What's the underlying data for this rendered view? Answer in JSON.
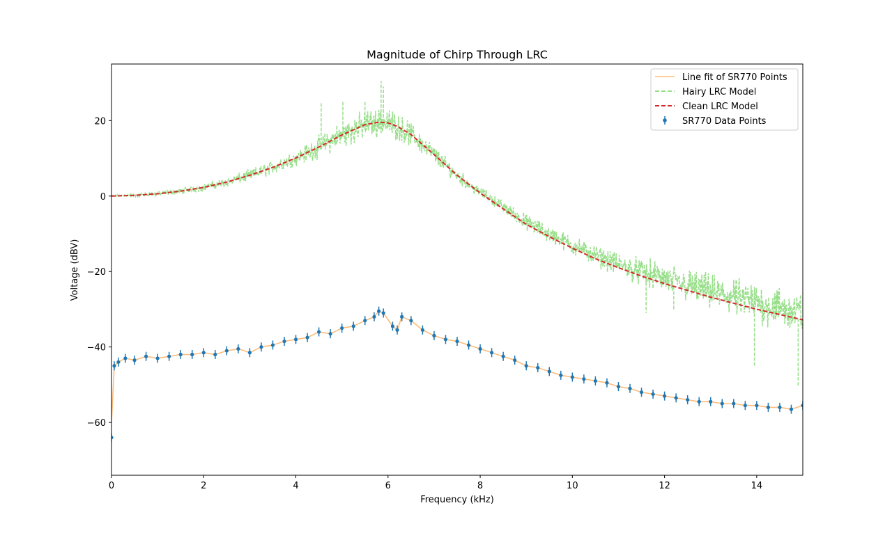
{
  "chart_data": {
    "type": "line",
    "title": "Magnitude of Chirp Through LRC",
    "xlabel": "Frequency (kHz)",
    "ylabel": "Voltage (dBV)",
    "xlim": [
      0,
      15
    ],
    "ylim": [
      -74,
      35
    ],
    "xticks": [
      0,
      2,
      4,
      6,
      8,
      10,
      12,
      14
    ],
    "yticks": [
      -60,
      -40,
      -20,
      0,
      20
    ],
    "grid": false,
    "legend_position": "top-right",
    "series": [
      {
        "name": "Line fit of SR770 Points",
        "kind": "line",
        "style": "solid",
        "color": "#ffbb78",
        "x": [
          0,
          0.06,
          0.15,
          0.3,
          0.5,
          0.75,
          1.0,
          1.25,
          1.5,
          1.75,
          2.0,
          2.25,
          2.5,
          2.75,
          3.0,
          3.25,
          3.5,
          3.75,
          4.0,
          4.25,
          4.5,
          4.75,
          5.0,
          5.25,
          5.5,
          5.7,
          5.8,
          5.9,
          6.1,
          6.2,
          6.3,
          6.5,
          6.75,
          7.0,
          7.25,
          7.5,
          7.75,
          8.0,
          8.25,
          8.5,
          8.75,
          9.0,
          9.25,
          9.5,
          9.75,
          10.0,
          10.25,
          10.5,
          10.75,
          11.0,
          11.25,
          11.5,
          11.75,
          12.0,
          12.25,
          12.5,
          12.75,
          13.0,
          13.25,
          13.5,
          13.75,
          14.0,
          14.25,
          14.5,
          14.75,
          15.0
        ],
        "y": [
          -60,
          -45,
          -44,
          -43,
          -43.5,
          -42.5,
          -43,
          -42.5,
          -42,
          -42,
          -41.5,
          -42,
          -41,
          -40.5,
          -41.5,
          -40,
          -39.5,
          -38.5,
          -38,
          -37.5,
          -36,
          -36.5,
          -35,
          -34.5,
          -33,
          -32,
          -30.5,
          -31,
          -34.5,
          -35.5,
          -32,
          -33,
          -35.5,
          -37,
          -38,
          -38.5,
          -39.5,
          -40.5,
          -41.5,
          -42.5,
          -43.5,
          -45,
          -45.5,
          -46.5,
          -47.5,
          -48,
          -48.5,
          -49,
          -49.5,
          -50.5,
          -51,
          -52,
          -52.5,
          -53,
          -53.5,
          -54,
          -54.5,
          -54.5,
          -55,
          -55,
          -55.5,
          -55.5,
          -56,
          -56,
          -56.5,
          -55.5
        ]
      },
      {
        "name": "Hairy LRC Model",
        "kind": "line",
        "style": "dashed",
        "color": "#98df8a",
        "x_range": [
          0,
          15
        ],
        "noise_profile": [
          [
            0,
            0.3
          ],
          [
            2,
            1.2
          ],
          [
            4,
            2.5
          ],
          [
            5,
            4.5
          ],
          [
            6,
            4.5
          ],
          [
            7,
            3
          ],
          [
            8,
            1.5
          ],
          [
            9,
            2.5
          ],
          [
            11,
            3.5
          ],
          [
            12,
            5
          ],
          [
            13,
            5.5
          ],
          [
            14,
            6.5
          ],
          [
            15,
            7
          ]
        ],
        "spikes": [
          [
            4.55,
            25
          ],
          [
            5.02,
            25
          ],
          [
            5.5,
            25
          ],
          [
            5.85,
            30.5
          ],
          [
            5.9,
            29
          ],
          [
            11.6,
            -31
          ],
          [
            12.2,
            -30
          ],
          [
            13.95,
            -45
          ],
          [
            14.9,
            -50.5
          ]
        ]
      },
      {
        "name": "Clean LRC Model",
        "kind": "line",
        "style": "dashed",
        "color": "#d62728",
        "x": [
          0,
          0.5,
          1.0,
          1.5,
          2.0,
          2.5,
          3.0,
          3.5,
          4.0,
          4.5,
          5.0,
          5.5,
          5.8,
          6.0,
          6.2,
          6.5,
          7.0,
          7.5,
          8.0,
          8.5,
          9.0,
          9.5,
          10.0,
          10.5,
          11.0,
          11.5,
          12.0,
          12.5,
          13.0,
          13.5,
          14.0,
          14.5,
          15.0
        ],
        "y": [
          0,
          0.2,
          0.6,
          1.3,
          2.3,
          3.7,
          5.5,
          7.6,
          10.1,
          13.0,
          16.2,
          18.9,
          19.6,
          19.4,
          18.5,
          16.3,
          11.0,
          5.5,
          0.8,
          -3.4,
          -7.5,
          -10.8,
          -13.8,
          -16.6,
          -19.0,
          -21.2,
          -23.2,
          -25.0,
          -26.8,
          -28.4,
          -30.0,
          -31.4,
          -32.8
        ]
      },
      {
        "name": "SR770 Data Points",
        "kind": "errorbar",
        "style": "markers",
        "color": "#1f77b4",
        "error": 1.2,
        "x": [
          0,
          0.06,
          0.15,
          0.3,
          0.5,
          0.75,
          1.0,
          1.25,
          1.5,
          1.75,
          2.0,
          2.25,
          2.5,
          2.75,
          3.0,
          3.25,
          3.5,
          3.75,
          4.0,
          4.25,
          4.5,
          4.75,
          5.0,
          5.25,
          5.5,
          5.7,
          5.8,
          5.9,
          6.1,
          6.2,
          6.3,
          6.5,
          6.75,
          7.0,
          7.25,
          7.5,
          7.75,
          8.0,
          8.25,
          8.5,
          8.75,
          9.0,
          9.25,
          9.5,
          9.75,
          10.0,
          10.25,
          10.5,
          10.75,
          11.0,
          11.25,
          11.5,
          11.75,
          12.0,
          12.25,
          12.5,
          12.75,
          13.0,
          13.25,
          13.5,
          13.75,
          14.0,
          14.25,
          14.5,
          14.75,
          15.0
        ],
        "y": [
          -64,
          -45,
          -44,
          -43,
          -43.5,
          -42.5,
          -43,
          -42.5,
          -42,
          -42,
          -41.5,
          -42,
          -41,
          -40.5,
          -41.5,
          -40,
          -39.5,
          -38.5,
          -38,
          -37.5,
          -36,
          -36.5,
          -35,
          -34.5,
          -33,
          -32,
          -30.5,
          -31,
          -34.5,
          -35.5,
          -32,
          -33,
          -35.5,
          -37,
          -38,
          -38.5,
          -39.5,
          -40.5,
          -41.5,
          -42.5,
          -43.5,
          -45,
          -45.5,
          -46.5,
          -47.5,
          -48,
          -48.5,
          -49,
          -49.5,
          -50.5,
          -51,
          -52,
          -52.5,
          -53,
          -53.5,
          -54,
          -54.5,
          -54.5,
          -55,
          -55,
          -55.5,
          -55.5,
          -56,
          -56,
          -56.5,
          -55.5
        ]
      }
    ]
  }
}
